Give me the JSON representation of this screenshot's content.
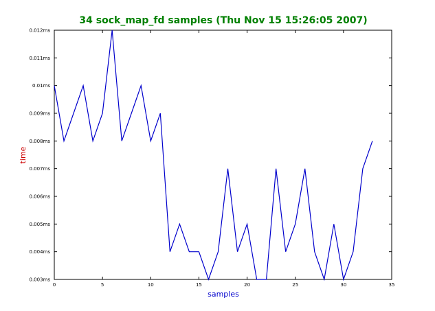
{
  "chart_data": {
    "type": "line",
    "title": "34 sock_map_fd samples (Thu Nov 15 15:26:05 2007)",
    "xlabel": "samples",
    "ylabel": "time",
    "xlim": [
      0,
      35
    ],
    "ylim": [
      0.003,
      0.012
    ],
    "x_ticks": [
      0,
      5,
      10,
      15,
      20,
      25,
      30,
      35
    ],
    "x_tick_labels": [
      "0",
      "5",
      "10",
      "15",
      "20",
      "25",
      "30",
      "35"
    ],
    "y_ticks": [
      0.003,
      0.004,
      0.005,
      0.006,
      0.007,
      0.008,
      0.009,
      0.01,
      0.011,
      0.012
    ],
    "y_tick_labels": [
      "0.003ms",
      "0.004ms",
      "0.005ms",
      "0.006ms",
      "0.007ms",
      "0.008ms",
      "0.009ms",
      "0.01ms",
      "0.011ms",
      "0.012ms"
    ],
    "grid": false,
    "series": [
      {
        "color": "#0000cc",
        "x": [
          0,
          1,
          2,
          3,
          4,
          5,
          6,
          7,
          8,
          9,
          10,
          11,
          12,
          13,
          14,
          15,
          16,
          17,
          18,
          19,
          20,
          21,
          22,
          23,
          24,
          25,
          26,
          27,
          28,
          29,
          30,
          31,
          32,
          33
        ],
        "y": [
          0.01,
          0.008,
          0.009,
          0.01,
          0.008,
          0.009,
          0.012,
          0.008,
          0.009,
          0.01,
          0.008,
          0.009,
          0.004,
          0.005,
          0.004,
          0.004,
          0.003,
          0.004,
          0.007,
          0.004,
          0.005,
          0.003,
          0.003,
          0.007,
          0.004,
          0.005,
          0.007,
          0.004,
          0.003,
          0.005,
          0.003,
          0.004,
          0.007,
          0.008
        ]
      }
    ]
  },
  "colors": {
    "title": "#008000",
    "xlabel": "#0000cc",
    "ylabel": "#cc0000",
    "axes": "#000000"
  }
}
